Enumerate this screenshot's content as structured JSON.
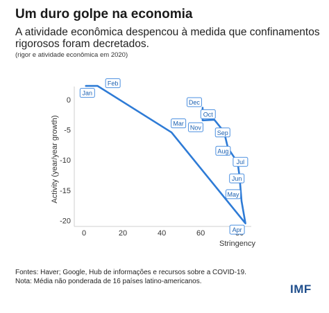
{
  "title": "Um duro golpe na economia",
  "subtitle": "A atividade econômica despencou à medida que confinamentos rigorosos foram decretados.",
  "note": "(rigor e atividade econômica em 2020)",
  "footer": {
    "sources": "Fontes: Haver; Google, Hub de informações e recursos sobre a COVID-19.",
    "note": "Nota: Média não ponderada de 16 países latino-americanos."
  },
  "logo": "IMF",
  "colors": {
    "line": "#2e7bd6",
    "label_border": "#4a8fe0",
    "label_text": "#1a5fb0",
    "axis": "#cfcfcf"
  },
  "chart_data": {
    "type": "line",
    "xlabel": "Stringency",
    "ylabel": "Activity (year/year growth)",
    "xlim": [
      -5,
      86
    ],
    "ylim": [
      -21,
      2.2
    ],
    "xticks": [
      0,
      20,
      40,
      60,
      80
    ],
    "yticks": [
      0,
      -5,
      -10,
      -15,
      -20
    ],
    "series": [
      {
        "points": [
          {
            "label": "Jan",
            "x": 1,
            "y": 2.3
          },
          {
            "label": "Feb",
            "x": 7,
            "y": 2.3
          },
          {
            "label": "Mar",
            "x": 45,
            "y": -5.4
          },
          {
            "label": "Apr",
            "x": 83,
            "y": -20.5
          },
          {
            "label": "May",
            "x": 81,
            "y": -16.8
          },
          {
            "label": "Jun",
            "x": 80,
            "y": -12.8
          },
          {
            "label": "Jul",
            "x": 79,
            "y": -10.4
          },
          {
            "label": "Aug",
            "x": 74,
            "y": -8.0
          },
          {
            "label": "Sep",
            "x": 72,
            "y": -5.3
          },
          {
            "label": "Oct",
            "x": 67,
            "y": -3.3
          },
          {
            "label": "Nov",
            "x": 61,
            "y": -3.4
          },
          {
            "label": "Dec",
            "x": 61,
            "y": -1.3
          }
        ]
      }
    ]
  }
}
